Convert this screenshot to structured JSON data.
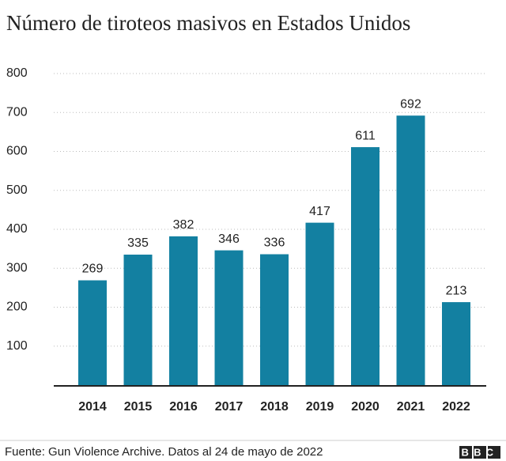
{
  "chart_data": {
    "type": "bar",
    "title": "Número de tiroteos masivos en Estados Unidos",
    "categories": [
      "2014",
      "2015",
      "2016",
      "2017",
      "2018",
      "2019",
      "2020",
      "2021",
      "2022"
    ],
    "values": [
      269,
      335,
      382,
      346,
      336,
      417,
      611,
      692,
      213
    ],
    "color": "#1380a1",
    "ylim": [
      0,
      800
    ],
    "yticks": [
      100,
      200,
      300,
      400,
      500,
      600,
      700,
      800
    ],
    "grid": true,
    "source": "Fuente: Gun Violence Archive. Datos al 24 de mayo de 2022",
    "logo": "BBC"
  }
}
